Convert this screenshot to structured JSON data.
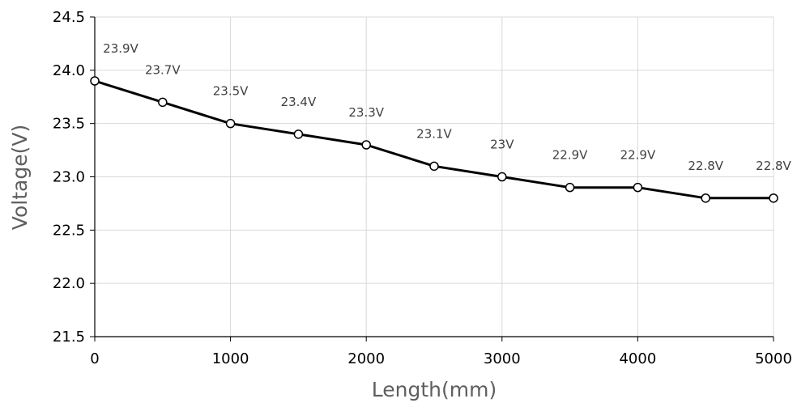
{
  "chart_data": {
    "type": "line",
    "title": "",
    "xlabel": "Length(mm)",
    "ylabel": "Voltage(V)",
    "xlim": [
      0,
      5000
    ],
    "ylim": [
      21.5,
      24.5
    ],
    "xticks": [
      0,
      1000,
      2000,
      3000,
      4000,
      5000
    ],
    "xtick_labels": [
      "0",
      "1000",
      "2000",
      "3000",
      "4000",
      "5000"
    ],
    "yticks": [
      21.5,
      22.0,
      22.5,
      23.0,
      23.5,
      24.0,
      24.5
    ],
    "ytick_labels": [
      "21.5",
      "22.0",
      "22.5",
      "23.0",
      "23.5",
      "24.0",
      "24.5"
    ],
    "grid": true,
    "legend": "none",
    "series": [
      {
        "color": "#000000",
        "marker": "open-circle",
        "x": [
          0,
          500,
          1000,
          1500,
          2000,
          2500,
          3000,
          3500,
          4000,
          4500,
          5000
        ],
        "y": [
          23.9,
          23.7,
          23.5,
          23.4,
          23.3,
          23.1,
          23.0,
          22.9,
          22.9,
          22.8,
          22.8
        ],
        "data_labels": [
          "23.9V",
          "23.7V",
          "23.5V",
          "23.4V",
          "23.3V",
          "23.1V",
          "23V",
          "22.9V",
          "22.9V",
          "22.8V",
          "22.8V"
        ]
      }
    ],
    "colors": {
      "grid": "#d9d9d9",
      "axis": "#000000",
      "line": "#000000",
      "label": "#404040",
      "title": "#5f5f5f"
    }
  }
}
